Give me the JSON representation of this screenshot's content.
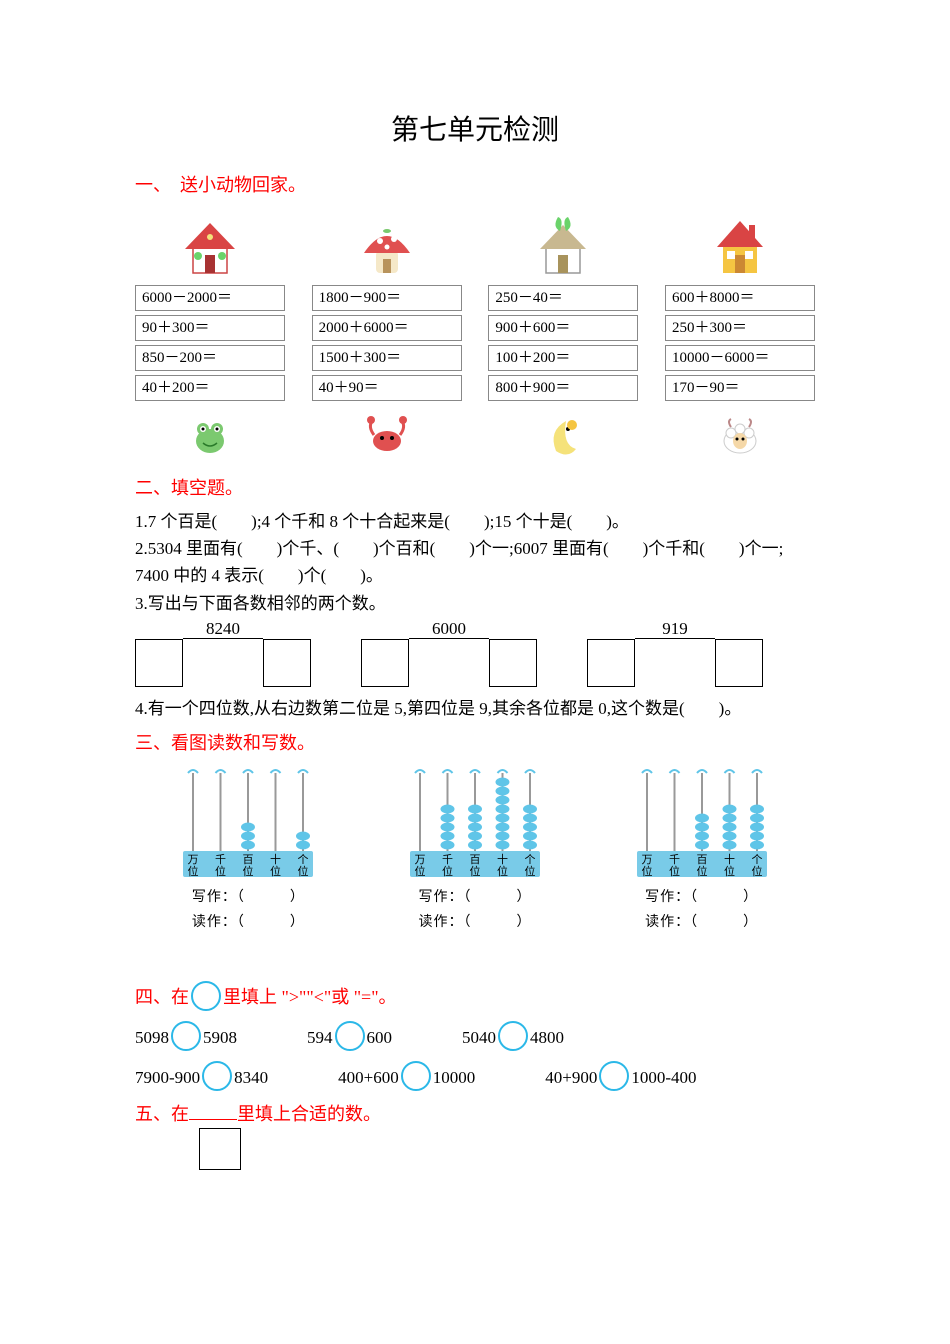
{
  "title": "第七单元检测",
  "section1": {
    "header": "一、　送小动物回家。",
    "cols": [
      {
        "house": "red_roof",
        "exprs": [
          "6000－2000＝",
          "90＋300＝",
          "850－200＝",
          "40＋200＝"
        ],
        "animal": "frog"
      },
      {
        "house": "mushroom",
        "exprs": [
          "1800－900＝",
          "2000＋6000＝",
          "1500＋300＝",
          "40＋90＝"
        ],
        "animal": "crab"
      },
      {
        "house": "leaf_roof",
        "exprs": [
          "250－40＝",
          "900＋600＝",
          "100＋200＝",
          "800＋900＝"
        ],
        "animal": "moon"
      },
      {
        "house": "yellow_roof",
        "exprs": [
          "600＋8000＝",
          "250＋300＝",
          "10000－6000＝",
          "170－90＝"
        ],
        "animal": "sheep"
      }
    ]
  },
  "section2": {
    "header": "二、填空题。",
    "q1": "1.7 个百是(　　);4 个千和 8 个十合起来是(　　);15 个十是(　　)。",
    "q2": "2.5304 里面有(　　)个千、(　　)个百和(　　)个一;6007 里面有(　　)个千和(　　)个一;",
    "q2b": "7400 中的 4 表示(　　)个(　　)。",
    "q3": "3.写出与下面各数相邻的两个数。",
    "adjacents": [
      "8240",
      "6000",
      "919"
    ],
    "q4": "4.有一个四位数,从右边数第二位是 5,第四位是 9,其余各位都是 0,这个数是(　　)。"
  },
  "section3": {
    "header": "三、看图读数和写数。",
    "abacuses": [
      {
        "beads": [
          0,
          0,
          3,
          0,
          2
        ],
        "write": "写作：（　　　）",
        "read": "读作：（　　　）"
      },
      {
        "beads": [
          0,
          5,
          5,
          8,
          5
        ],
        "write": "写作：（　　　）",
        "read": "读作：（　　　）"
      },
      {
        "beads": [
          0,
          0,
          4,
          5,
          5
        ],
        "write": "写作：（　　　）",
        "read": "读作：（　　　）"
      }
    ],
    "positions": "万 千 百 十 个",
    "positions2": "位 位 位 位 位"
  },
  "section4": {
    "header_pre": "四、在",
    "header_post": "里填上 \">\"\"<\"或 \"=\"。",
    "rows": [
      [
        {
          "l": "5098",
          "r": "5908"
        },
        {
          "l": "594",
          "r": "600"
        },
        {
          "l": "5040",
          "r": "4800"
        }
      ],
      [
        {
          "l": "7900-900",
          "r": "8340"
        },
        {
          "l": "400+600",
          "r": "10000"
        },
        {
          "l": "40+900",
          "r": "1000-400"
        }
      ]
    ]
  },
  "section5": {
    "header_pre": "五、在",
    "header_post": "里填上合适的数。"
  },
  "colors": {
    "red_text": "#ff0000",
    "circle_border": "#2bb8e8",
    "bead": "#5fc5e8",
    "abacus_base": "#79cbe8",
    "box_border": "#888888"
  }
}
